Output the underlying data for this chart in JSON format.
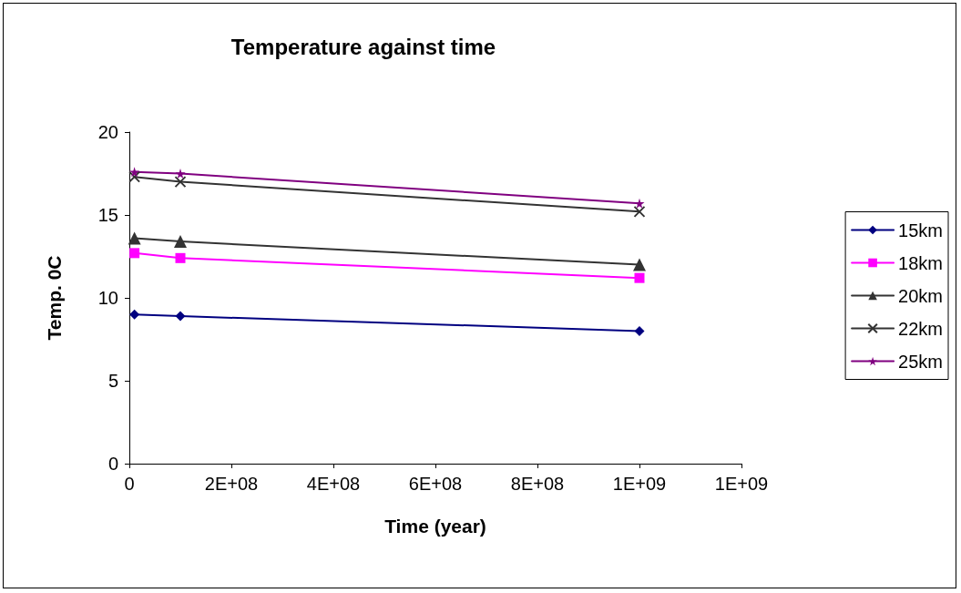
{
  "chart_data": {
    "type": "line",
    "title": "Temperature against time",
    "xlabel": "Time (year)",
    "ylabel": "Temp. 0C",
    "x": [
      10000000,
      100000000,
      1000000000
    ],
    "series": [
      {
        "name": "15km",
        "color": "#000080",
        "marker": "diamond",
        "values": [
          9.0,
          8.9,
          8.0
        ]
      },
      {
        "name": "18km",
        "color": "#ff00ff",
        "marker": "square",
        "values": [
          12.7,
          12.4,
          11.2
        ]
      },
      {
        "name": "20km",
        "color": "#333333",
        "marker": "triangle",
        "values": [
          13.6,
          13.4,
          12.0
        ]
      },
      {
        "name": "22km",
        "color": "#333333",
        "marker": "cross",
        "values": [
          17.3,
          17.0,
          15.2
        ]
      },
      {
        "name": "25km",
        "color": "#800080",
        "marker": "star",
        "values": [
          17.6,
          17.5,
          15.7
        ]
      }
    ],
    "xlim": [
      0,
      1200000000
    ],
    "xticks": [
      0,
      {
        "value": 200000000,
        "label": "2E+08"
      },
      {
        "value": 400000000,
        "label": "4E+08"
      },
      {
        "value": 600000000,
        "label": "6E+08"
      },
      {
        "value": 800000000,
        "label": "8E+08"
      },
      {
        "value": 1000000000,
        "label": "1E+09"
      },
      {
        "value": 1200000000,
        "label": "1E+09"
      }
    ],
    "ylim": [
      0,
      20
    ],
    "yticks": [
      0,
      5,
      10,
      15,
      20
    ],
    "grid": false,
    "legend": "right",
    "line_style": "solid"
  }
}
